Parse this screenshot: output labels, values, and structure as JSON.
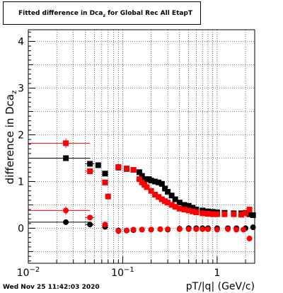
{
  "timestamp": "Wed Nov 25 11:42:03 2020",
  "chart_data": {
    "type": "scatter",
    "title_main": "Fitted difference in Dca",
    "title_sub": "z",
    "title_rest": " for Global Rec All EtapT",
    "xlabel": "pT/|q| (GeV/c)",
    "ylabel_main": "difference in Dca",
    "ylabel_sub": "z",
    "x_scale": "log",
    "xlim": [
      0.01,
      2.5
    ],
    "ylim": [
      -0.75,
      4.25
    ],
    "grid": true,
    "x_tick_major": [
      {
        "v": 0.01,
        "base": "10",
        "exp": "−2"
      },
      {
        "v": 0.1,
        "base": "10",
        "exp": "−1"
      },
      {
        "v": 1,
        "base": "1",
        "exp": ""
      }
    ],
    "y_ticks": [
      {
        "v": 0,
        "label": "0"
      },
      {
        "v": 1,
        "label": "1"
      },
      {
        "v": 2,
        "label": "2"
      },
      {
        "v": 3,
        "label": "3"
      },
      {
        "v": 4,
        "label": "4"
      }
    ],
    "series": [
      {
        "color": "#000000",
        "marker": "square",
        "x": [
          0.025,
          0.045,
          0.055,
          0.065,
          0.09,
          0.11,
          0.13,
          0.15,
          0.16,
          0.17,
          0.18,
          0.19,
          0.2,
          0.22,
          0.24,
          0.26,
          0.28,
          0.3,
          0.33,
          0.36,
          0.4,
          0.45,
          0.5,
          0.55,
          0.6,
          0.7,
          0.8,
          0.9,
          1.0,
          1.2,
          1.5,
          1.8,
          2.0,
          2.2,
          2.4
        ],
        "y": [
          1.5,
          1.38,
          1.35,
          1.17,
          1.3,
          1.27,
          1.25,
          1.2,
          1.12,
          1.05,
          1.05,
          1.05,
          1.02,
          1.0,
          0.98,
          0.95,
          0.85,
          0.78,
          0.7,
          0.62,
          0.55,
          0.5,
          0.48,
          0.44,
          0.4,
          0.38,
          0.36,
          0.35,
          0.34,
          0.33,
          0.32,
          0.32,
          0.33,
          0.3,
          0.28
        ],
        "xerr": [
          [
            0.01,
            0.045
          ],
          [
            0.04,
            0.05
          ]
        ]
      },
      {
        "color": "#ff0000",
        "marker": "square",
        "x": [
          0.025,
          0.045,
          0.065,
          0.07,
          0.09,
          0.11,
          0.13,
          0.15,
          0.16,
          0.17,
          0.18,
          0.2,
          0.22,
          0.24,
          0.26,
          0.28,
          0.3,
          0.33,
          0.36,
          0.4,
          0.45,
          0.5,
          0.55,
          0.6,
          0.7,
          0.8,
          0.9,
          1.0,
          1.2,
          1.5,
          1.8,
          2.0,
          2.2
        ],
        "y": [
          1.82,
          1.22,
          0.98,
          0.68,
          1.31,
          1.28,
          1.25,
          1.05,
          0.98,
          0.93,
          0.88,
          0.8,
          0.72,
          0.67,
          0.62,
          0.58,
          0.55,
          0.5,
          0.46,
          0.42,
          0.4,
          0.38,
          0.36,
          0.34,
          0.32,
          0.31,
          0.3,
          0.3,
          0.3,
          0.3,
          0.29,
          0.32,
          0.4
        ],
        "xerr": [
          [
            0.01,
            0.045
          ],
          [
            0.04,
            0.05
          ]
        ],
        "yerr_first": 0.1
      },
      {
        "color": "#000000",
        "marker": "circle",
        "x": [
          0.025,
          0.045,
          0.065,
          0.09,
          0.11,
          0.13,
          0.16,
          0.2,
          0.25,
          0.3,
          0.4,
          0.5,
          0.6,
          0.7,
          0.8,
          1.0,
          1.3,
          1.6,
          2.0,
          2.4
        ],
        "y": [
          0.13,
          0.08,
          0.03,
          -0.05,
          -0.05,
          -0.04,
          -0.03,
          -0.03,
          -0.02,
          -0.03,
          -0.01,
          0.0,
          0.0,
          0.0,
          0.0,
          0.0,
          0.0,
          0.0,
          0.0,
          0.02
        ],
        "xerr": [
          [
            0.01,
            0.045
          ],
          [
            0.04,
            0.05
          ]
        ]
      },
      {
        "color": "#ff0000",
        "marker": "circle",
        "x": [
          0.025,
          0.045,
          0.065,
          0.09,
          0.11,
          0.13,
          0.16,
          0.2,
          0.25,
          0.3,
          0.4,
          0.5,
          0.6,
          0.7,
          0.8,
          1.0,
          1.3,
          1.6,
          1.9,
          2.2
        ],
        "y": [
          0.38,
          0.23,
          0.08,
          -0.06,
          -0.05,
          -0.03,
          -0.03,
          -0.03,
          -0.02,
          -0.02,
          -0.02,
          -0.02,
          -0.02,
          -0.02,
          -0.02,
          -0.03,
          -0.02,
          -0.03,
          -0.03,
          -0.22
        ],
        "xerr": [
          [
            0.01,
            0.045
          ],
          [
            0.04,
            0.05
          ]
        ],
        "yerr_first": 0.09
      }
    ]
  }
}
